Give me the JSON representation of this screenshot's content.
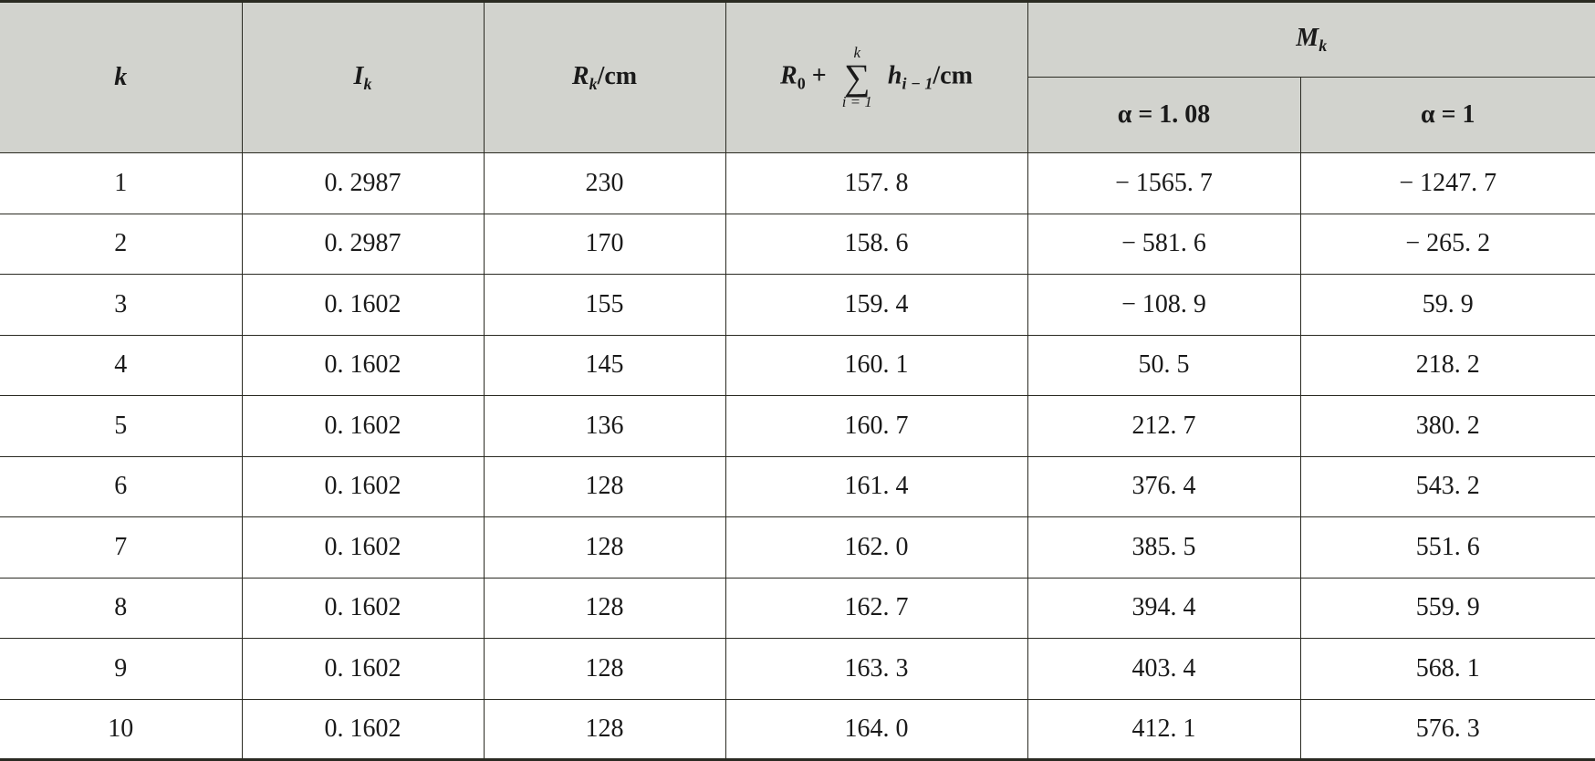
{
  "table": {
    "header": {
      "k": "k",
      "I_k": [
        "I",
        "k"
      ],
      "R_k": [
        "R",
        "k",
        "/cm"
      ],
      "sum": {
        "R": "R",
        "R_sub": "0",
        "plus": "+",
        "sigma": "∑",
        "upper": "k",
        "lower": "i = 1",
        "h": "h",
        "h_sub": "i − 1",
        "unit": "/cm"
      },
      "M_k": [
        "M",
        "k"
      ],
      "alpha_1": "α = 1. 08",
      "alpha_2": "α = 1"
    },
    "rows": [
      [
        "1",
        "0. 2987",
        "230",
        "157. 8",
        "− 1565. 7",
        "− 1247. 7"
      ],
      [
        "2",
        "0. 2987",
        "170",
        "158. 6",
        "− 581. 6",
        "− 265. 2"
      ],
      [
        "3",
        "0. 1602",
        "155",
        "159. 4",
        "− 108. 9",
        "59. 9"
      ],
      [
        "4",
        "0. 1602",
        "145",
        "160. 1",
        "50. 5",
        "218. 2"
      ],
      [
        "5",
        "0. 1602",
        "136",
        "160. 7",
        "212. 7",
        "380. 2"
      ],
      [
        "6",
        "0. 1602",
        "128",
        "161. 4",
        "376. 4",
        "543. 2"
      ],
      [
        "7",
        "0. 1602",
        "128",
        "162. 0",
        "385. 5",
        "551. 6"
      ],
      [
        "8",
        "0. 1602",
        "128",
        "162. 7",
        "394. 4",
        "559. 9"
      ],
      [
        "9",
        "0. 1602",
        "128",
        "163. 3",
        "403. 4",
        "568. 1"
      ],
      [
        "10",
        "0. 1602",
        "128",
        "164. 0",
        "412. 1",
        "576. 3"
      ]
    ]
  }
}
